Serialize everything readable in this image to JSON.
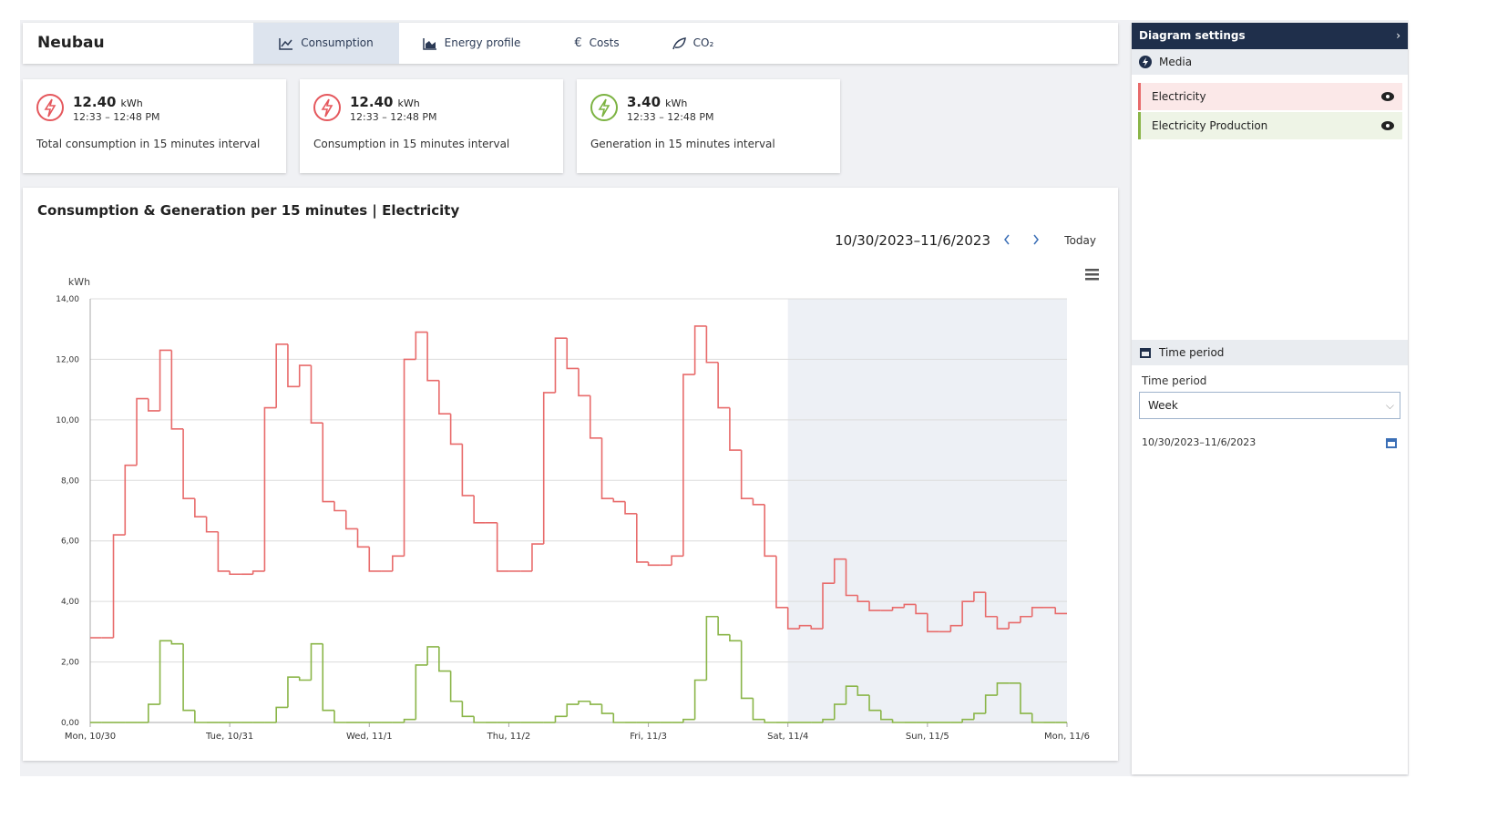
{
  "header": {
    "title": "Neubau",
    "tabs": [
      "Consumption",
      "Energy profile",
      "Costs",
      "CO₂"
    ]
  },
  "cards": [
    {
      "value": "12.40",
      "unit": "kWh",
      "time": "12:33 – 12:48 PM",
      "label": "Total consumption in 15 minutes interval",
      "color": "#e5585d"
    },
    {
      "value": "12.40",
      "unit": "kWh",
      "time": "12:33 – 12:48 PM",
      "label": "Consumption in 15 minutes interval",
      "color": "#e5585d"
    },
    {
      "value": "3.40",
      "unit": "kWh",
      "time": "12:33 – 12:48 PM",
      "label": "Generation in 15 minutes interval",
      "color": "#7cb342"
    }
  ],
  "chart_data": {
    "type": "line",
    "drawstyle": "steps-post",
    "title": "Consumption & Generation per 15 minutes | Electricity",
    "date_range": "10/30/2023–11/6/2023",
    "today": "Today",
    "ylabel": "kWh",
    "grid": true,
    "xlim": [
      0,
      168
    ],
    "xticks": [
      {
        "value": 0,
        "label": "Mon, 10/30"
      },
      {
        "value": 24,
        "label": "Tue, 10/31"
      },
      {
        "value": 48,
        "label": "Wed, 11/1"
      },
      {
        "value": 72,
        "label": "Thu, 11/2"
      },
      {
        "value": 96,
        "label": "Fri, 11/3"
      },
      {
        "value": 120,
        "label": "Sat, 11/4"
      },
      {
        "value": 144,
        "label": "Sun, 11/5"
      },
      {
        "value": 168,
        "label": "Mon, 11/6"
      }
    ],
    "ylim": [
      0,
      14
    ],
    "yticks": [
      {
        "value": 0,
        "label": "0,00"
      },
      {
        "value": 2,
        "label": "2,00"
      },
      {
        "value": 4,
        "label": "4,00"
      },
      {
        "value": 6,
        "label": "6,00"
      },
      {
        "value": 8,
        "label": "8,00"
      },
      {
        "value": 10,
        "label": "10,00"
      },
      {
        "value": 12,
        "label": "12,00"
      },
      {
        "value": 14,
        "label": "14,00"
      }
    ],
    "x": [
      0,
      2,
      4,
      6,
      8,
      10,
      12,
      14,
      16,
      18,
      20,
      22,
      24,
      26,
      28,
      30,
      32,
      34,
      36,
      38,
      40,
      42,
      44,
      46,
      48,
      50,
      52,
      54,
      56,
      58,
      60,
      62,
      64,
      66,
      68,
      70,
      72,
      74,
      76,
      78,
      80,
      82,
      84,
      86,
      88,
      90,
      92,
      94,
      96,
      98,
      100,
      102,
      104,
      106,
      108,
      110,
      112,
      114,
      116,
      118,
      120,
      122,
      124,
      126,
      128,
      130,
      132,
      134,
      136,
      138,
      140,
      142,
      144,
      146,
      148,
      150,
      152,
      154,
      156,
      158,
      160,
      162,
      164,
      166
    ],
    "series": [
      {
        "name": "Electricity",
        "color": "#e86b6b",
        "values": [
          2.8,
          2.8,
          6.2,
          8.5,
          10.7,
          10.3,
          12.3,
          9.7,
          7.4,
          6.8,
          6.3,
          5.0,
          4.9,
          4.9,
          5.0,
          10.4,
          12.5,
          11.1,
          11.8,
          9.9,
          7.3,
          7.0,
          6.4,
          5.8,
          5.0,
          5.0,
          5.5,
          12.0,
          12.9,
          11.3,
          10.2,
          9.2,
          7.5,
          6.6,
          6.6,
          5.0,
          5.0,
          5.0,
          5.9,
          10.9,
          12.7,
          11.7,
          10.8,
          9.4,
          7.4,
          7.3,
          6.9,
          5.3,
          5.2,
          5.2,
          5.5,
          11.5,
          13.1,
          11.9,
          10.4,
          9.0,
          7.4,
          7.2,
          5.5,
          3.8,
          3.1,
          3.2,
          3.1,
          4.6,
          5.4,
          4.2,
          4.0,
          3.7,
          3.7,
          3.8,
          3.9,
          3.6,
          3.0,
          3.0,
          3.2,
          4.0,
          4.3,
          3.5,
          3.1,
          3.3,
          3.5,
          3.8,
          3.8,
          3.6
        ]
      },
      {
        "name": "Electricity Production",
        "color": "#8ab548",
        "values": [
          0,
          0,
          0,
          0,
          0,
          0.6,
          2.7,
          2.6,
          0.4,
          0,
          0,
          0,
          0,
          0,
          0,
          0,
          0.5,
          1.5,
          1.4,
          2.6,
          0.4,
          0,
          0,
          0,
          0,
          0,
          0,
          0.1,
          1.9,
          2.5,
          1.7,
          0.7,
          0.2,
          0,
          0,
          0,
          0,
          0,
          0,
          0,
          0.2,
          0.6,
          0.7,
          0.6,
          0.3,
          0,
          0,
          0,
          0,
          0,
          0,
          0.1,
          1.4,
          3.5,
          2.9,
          2.7,
          0.8,
          0.1,
          0,
          0,
          0,
          0,
          0,
          0.1,
          0.6,
          1.2,
          0.9,
          0.4,
          0.1,
          0,
          0,
          0,
          0,
          0,
          0,
          0.1,
          0.3,
          0.9,
          1.3,
          1.3,
          0.3,
          0,
          0,
          0
        ]
      }
    ]
  },
  "sidebar": {
    "title": "Diagram settings",
    "media": "Media",
    "time_header": "Time period",
    "field_label": "Time period",
    "select": "Week"
  }
}
